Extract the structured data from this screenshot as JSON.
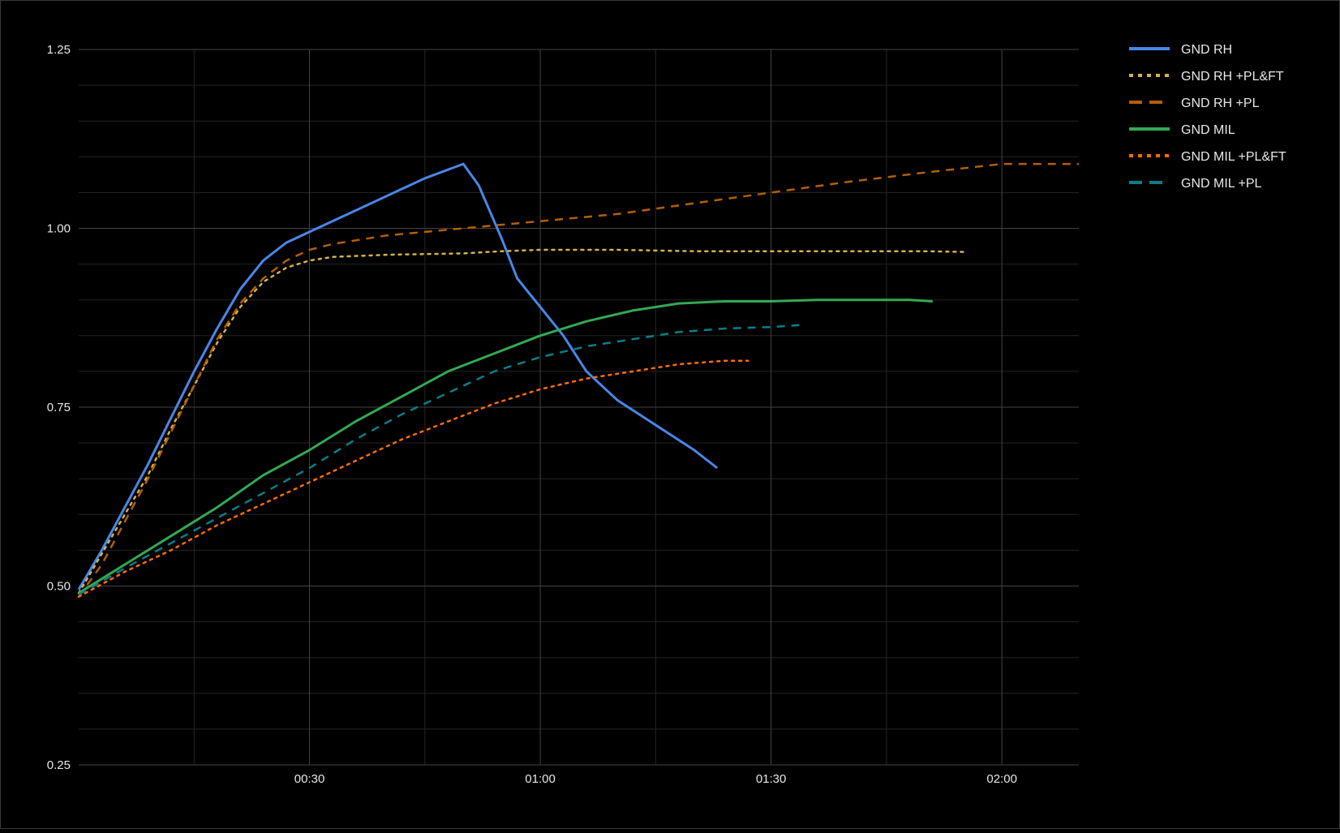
{
  "chart_data": {
    "type": "line",
    "title": "",
    "xlabel": "",
    "ylabel": "",
    "xlim": [
      0,
      130
    ],
    "ylim": [
      0.25,
      1.25
    ],
    "x_ticks": [
      {
        "value": 30,
        "label": "00:30"
      },
      {
        "value": 60,
        "label": "01:00"
      },
      {
        "value": 90,
        "label": "01:30"
      },
      {
        "value": 120,
        "label": "02:00"
      }
    ],
    "y_ticks": [
      {
        "value": 0.25,
        "label": "0.25"
      },
      {
        "value": 0.5,
        "label": "0.50"
      },
      {
        "value": 0.75,
        "label": "0.75"
      },
      {
        "value": 1.0,
        "label": "1.00"
      },
      {
        "value": 1.25,
        "label": "1.25"
      }
    ],
    "grid": true,
    "legend_position": "top-right",
    "series": [
      {
        "name": "GND RH",
        "color": "#4a86e8",
        "style": "solid",
        "points": [
          [
            0,
            0.495
          ],
          [
            3,
            0.55
          ],
          [
            6,
            0.61
          ],
          [
            9,
            0.67
          ],
          [
            12,
            0.735
          ],
          [
            15,
            0.8
          ],
          [
            18,
            0.86
          ],
          [
            21,
            0.915
          ],
          [
            24,
            0.955
          ],
          [
            27,
            0.98
          ],
          [
            30,
            0.995
          ],
          [
            35,
            1.02
          ],
          [
            40,
            1.045
          ],
          [
            45,
            1.07
          ],
          [
            50,
            1.09
          ],
          [
            52,
            1.06
          ],
          [
            55,
            0.985
          ],
          [
            57,
            0.93
          ],
          [
            60,
            0.89
          ],
          [
            63,
            0.85
          ],
          [
            66,
            0.8
          ],
          [
            70,
            0.76
          ],
          [
            75,
            0.725
          ],
          [
            80,
            0.69
          ],
          [
            83,
            0.665
          ]
        ]
      },
      {
        "name": "GND RH +PL&FT",
        "color": "#d4b24a",
        "style": "dotted",
        "points": [
          [
            0,
            0.49
          ],
          [
            3,
            0.545
          ],
          [
            6,
            0.6
          ],
          [
            9,
            0.655
          ],
          [
            12,
            0.72
          ],
          [
            15,
            0.78
          ],
          [
            18,
            0.84
          ],
          [
            21,
            0.89
          ],
          [
            24,
            0.925
          ],
          [
            27,
            0.945
          ],
          [
            30,
            0.955
          ],
          [
            33,
            0.96
          ],
          [
            40,
            0.963
          ],
          [
            50,
            0.965
          ],
          [
            55,
            0.968
          ],
          [
            60,
            0.97
          ],
          [
            70,
            0.97
          ],
          [
            80,
            0.968
          ],
          [
            90,
            0.968
          ],
          [
            100,
            0.968
          ],
          [
            110,
            0.968
          ],
          [
            115,
            0.967
          ]
        ]
      },
      {
        "name": "GND RH +PL",
        "color": "#b45f06",
        "style": "dashed",
        "points": [
          [
            0,
            0.485
          ],
          [
            3,
            0.53
          ],
          [
            6,
            0.59
          ],
          [
            9,
            0.65
          ],
          [
            12,
            0.715
          ],
          [
            15,
            0.78
          ],
          [
            18,
            0.845
          ],
          [
            21,
            0.895
          ],
          [
            24,
            0.93
          ],
          [
            27,
            0.955
          ],
          [
            30,
            0.97
          ],
          [
            33,
            0.978
          ],
          [
            40,
            0.99
          ],
          [
            50,
            1.0
          ],
          [
            60,
            1.01
          ],
          [
            70,
            1.02
          ],
          [
            80,
            1.035
          ],
          [
            90,
            1.05
          ],
          [
            100,
            1.065
          ],
          [
            110,
            1.078
          ],
          [
            120,
            1.09
          ],
          [
            130,
            1.09
          ]
        ]
      },
      {
        "name": "GND MIL",
        "color": "#34a853",
        "style": "solid",
        "points": [
          [
            0,
            0.49
          ],
          [
            6,
            0.53
          ],
          [
            12,
            0.57
          ],
          [
            18,
            0.61
          ],
          [
            24,
            0.655
          ],
          [
            30,
            0.69
          ],
          [
            36,
            0.73
          ],
          [
            42,
            0.765
          ],
          [
            48,
            0.8
          ],
          [
            54,
            0.825
          ],
          [
            60,
            0.85
          ],
          [
            66,
            0.87
          ],
          [
            72,
            0.885
          ],
          [
            78,
            0.895
          ],
          [
            84,
            0.898
          ],
          [
            90,
            0.898
          ],
          [
            96,
            0.9
          ],
          [
            102,
            0.9
          ],
          [
            108,
            0.9
          ],
          [
            111,
            0.898
          ]
        ]
      },
      {
        "name": "GND MIL +PL&FT",
        "color": "#ff6d01",
        "style": "dotted",
        "points": [
          [
            0,
            0.485
          ],
          [
            6,
            0.52
          ],
          [
            12,
            0.55
          ],
          [
            18,
            0.585
          ],
          [
            24,
            0.615
          ],
          [
            30,
            0.645
          ],
          [
            36,
            0.675
          ],
          [
            42,
            0.705
          ],
          [
            48,
            0.73
          ],
          [
            54,
            0.755
          ],
          [
            60,
            0.775
          ],
          [
            66,
            0.79
          ],
          [
            72,
            0.8
          ],
          [
            78,
            0.81
          ],
          [
            84,
            0.815
          ],
          [
            87,
            0.815
          ]
        ]
      },
      {
        "name": "GND MIL +PL",
        "color": "#0b7e8a",
        "style": "dashed",
        "points": [
          [
            0,
            0.488
          ],
          [
            6,
            0.525
          ],
          [
            12,
            0.56
          ],
          [
            18,
            0.595
          ],
          [
            24,
            0.63
          ],
          [
            30,
            0.665
          ],
          [
            36,
            0.705
          ],
          [
            42,
            0.74
          ],
          [
            48,
            0.77
          ],
          [
            54,
            0.8
          ],
          [
            60,
            0.82
          ],
          [
            66,
            0.835
          ],
          [
            72,
            0.845
          ],
          [
            78,
            0.855
          ],
          [
            84,
            0.86
          ],
          [
            90,
            0.862
          ],
          [
            94,
            0.865
          ]
        ]
      }
    ]
  }
}
